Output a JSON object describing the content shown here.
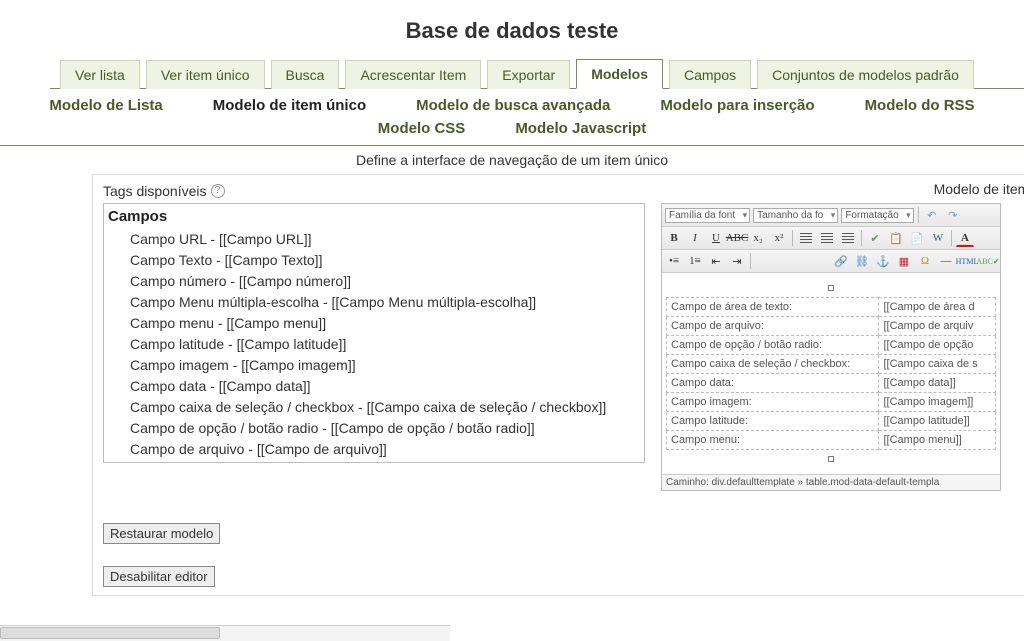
{
  "title": "Base de dados teste",
  "tabs_primary": [
    {
      "label": "Ver lista",
      "active": false
    },
    {
      "label": "Ver item único",
      "active": false
    },
    {
      "label": "Busca",
      "active": false
    },
    {
      "label": "Acrescentar Item",
      "active": false
    },
    {
      "label": "Exportar",
      "active": false
    },
    {
      "label": "Modelos",
      "active": true
    },
    {
      "label": "Campos",
      "active": false
    },
    {
      "label": "Conjuntos de modelos padrão",
      "active": false
    }
  ],
  "tabs_secondary_row1": [
    {
      "label": "Modelo de Lista",
      "active": false
    },
    {
      "label": "Modelo de item único",
      "active": true
    },
    {
      "label": "Modelo de busca avançada",
      "active": false
    },
    {
      "label": "Modelo para inserção",
      "active": false
    },
    {
      "label": "Modelo do RSS",
      "active": false
    },
    {
      "label": "Modelo CSS",
      "active": false
    }
  ],
  "tabs_secondary_row2": [
    {
      "label": "Modelo Javascript",
      "active": false
    }
  ],
  "description": "Define a interface de navegação de um item único",
  "tags_label": "Tags disponíveis",
  "tags_heading": "Campos",
  "tags_items": [
    "Campo URL - [[Campo URL]]",
    "Campo Texto - [[Campo Texto]]",
    "Campo número - [[Campo número]]",
    "Campo Menu múltipla-escolha - [[Campo Menu múltipla-escolha]]",
    "Campo menu - [[Campo menu]]",
    "Campo latitude - [[Campo latitude]]",
    "Campo imagem - [[Campo imagem]]",
    "Campo data - [[Campo data]]",
    "Campo caixa de seleção / checkbox - [[Campo caixa de seleção / checkbox]]",
    "Campo de opção / botão radio - [[Campo de opção / botão radio]]",
    "Campo de arquivo - [[Campo de arquivo]]"
  ],
  "btn_restore": "Restaurar modelo",
  "btn_disable": "Desabilitar editor",
  "right_title": "Modelo de item ú",
  "editor": {
    "dd_font": "Família da font",
    "dd_size": "Tamanho da fo",
    "dd_format": "Formatação",
    "rows": [
      {
        "k": "Campo de área de texto:",
        "v": "[[Campo de área d"
      },
      {
        "k": "Campo de arquivo:",
        "v": "[[Campo de arquiv"
      },
      {
        "k": "Campo de opção / botão radio:",
        "v": "[[Campo de opção"
      },
      {
        "k": "Campo caixa de seleção / checkbox:",
        "v": "[[Campo caixa de s"
      },
      {
        "k": "Campo data:",
        "v": "[[Campo data]]"
      },
      {
        "k": "Campo imagem:",
        "v": "[[Campo imagem]]"
      },
      {
        "k": "Campo latitude:",
        "v": "[[Campo latitude]]"
      },
      {
        "k": "Campo menu:",
        "v": "[[Campo menu]]"
      }
    ],
    "path": "Caminho: div.defaulttemplate » table.mod-data-default-templa"
  },
  "colors": {
    "olive_border": "#7a8a5a",
    "tab_bg": "#eef3e4",
    "tab_text": "#4a5a2a"
  }
}
